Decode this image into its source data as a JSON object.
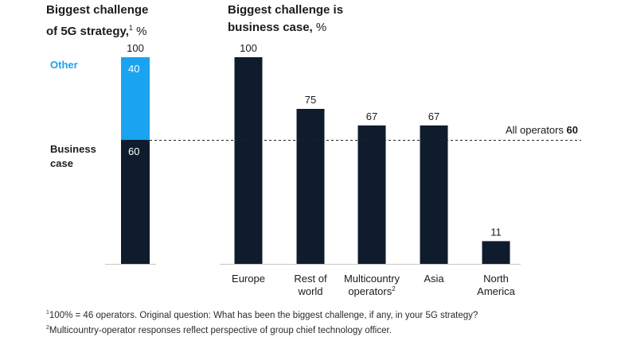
{
  "left_heading": {
    "line1": "Biggest challenge",
    "line2": "of 5G strategy,",
    "sup": "1",
    "unit": " %"
  },
  "right_heading": {
    "line1": "Biggest challenge is",
    "line2": "business case,",
    "unit": " %"
  },
  "stack_legend": {
    "other": "Other",
    "business_case_line1": "Business",
    "business_case_line2": "case"
  },
  "reference_line": {
    "label": "All operators ",
    "value": "60"
  },
  "footnotes": {
    "note1_sup": "1",
    "note1": "100% = 46 operators. Original question: What has been the biggest challenge, if any, in your 5G strategy?",
    "note2_sup": "2",
    "note2": "Multicountry-operator responses reflect perspective of group chief technology officer."
  },
  "colors": {
    "dark": "#0f1c2e",
    "other": "#1aa3f0",
    "text": "#1a1a1a"
  },
  "chart_data": [
    {
      "type": "bar",
      "title": "Biggest challenge of 5G strategy, %",
      "categories": [
        ""
      ],
      "series": [
        {
          "name": "Business case",
          "values": [
            60
          ]
        },
        {
          "name": "Other",
          "values": [
            40
          ]
        }
      ],
      "total_label": "100",
      "stacked": true,
      "ylim": [
        0,
        100
      ]
    },
    {
      "type": "bar",
      "title": "Biggest challenge is business case, %",
      "categories": [
        {
          "lines": [
            "Europe"
          ]
        },
        {
          "lines": [
            "Rest of",
            "world"
          ]
        },
        {
          "lines": [
            "Multicountry",
            "operators"
          ],
          "sup": "2"
        },
        {
          "lines": [
            "Asia"
          ]
        },
        {
          "lines": [
            "North",
            "America"
          ]
        }
      ],
      "values": [
        100,
        75,
        67,
        67,
        11
      ],
      "reference_value": 60,
      "ylim": [
        0,
        100
      ]
    }
  ]
}
